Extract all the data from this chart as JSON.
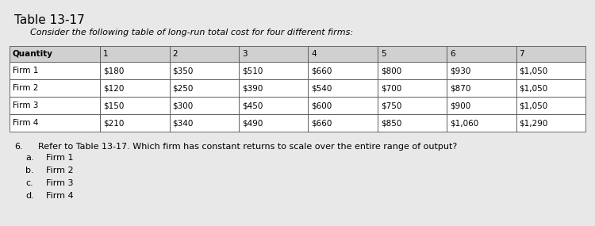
{
  "title": "Table 13-17",
  "subtitle": "Consider the following table of long-run total cost for four different firms:",
  "columns": [
    "Quantity",
    "1",
    "2",
    "3",
    "4",
    "5",
    "6",
    "7"
  ],
  "rows": [
    [
      "Firm 1",
      "$180",
      "$350",
      "$510",
      "$660",
      "$800",
      "$930",
      "$1,050"
    ],
    [
      "Firm 2",
      "$120",
      "$250",
      "$390",
      "$540",
      "$700",
      "$870",
      "$1,050"
    ],
    [
      "Firm 3",
      "$150",
      "$300",
      "$450",
      "$600",
      "$750",
      "$900",
      "$1,050"
    ],
    [
      "Firm 4",
      "$210",
      "$340",
      "$490",
      "$660",
      "$850",
      "$1,060",
      "$1,290"
    ]
  ],
  "question_number": "6.",
  "question_text": "Refer to Table 13-17. Which firm has constant returns to scale over the entire range of output?",
  "options": [
    [
      "a.",
      "Firm 1"
    ],
    [
      "b.",
      "Firm 2"
    ],
    [
      "c.",
      "Firm 3"
    ],
    [
      "d.",
      "Firm 4"
    ]
  ],
  "bg_color": "#e8e8e8",
  "header_bg": "#d0d0d0",
  "cell_bg": "#ffffff",
  "border_color": "#555555",
  "text_color": "#000000",
  "font_size_title": 11,
  "font_size_subtitle": 8,
  "font_size_table": 7.5,
  "font_size_question": 8
}
